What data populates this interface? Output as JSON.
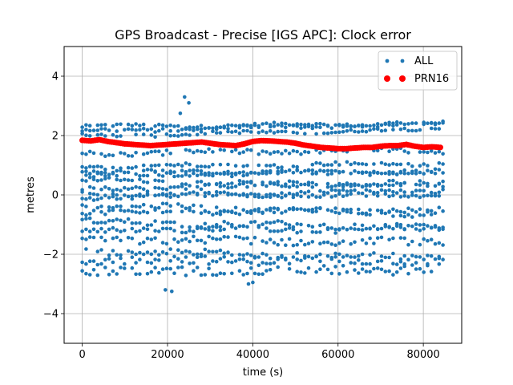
{
  "chart_data": {
    "type": "scatter",
    "title": "GPS Broadcast - Precise [IGS APC]: Clock error",
    "xlabel": "time (s)",
    "ylabel": "metres",
    "xlim": [
      -4250,
      89000
    ],
    "ylim": [
      -5,
      5
    ],
    "x_ticks": [
      0,
      20000,
      40000,
      60000,
      80000
    ],
    "y_ticks": [
      -4,
      -2,
      0,
      2,
      4
    ],
    "grid": true,
    "legend_position": "upper right",
    "series": [
      {
        "name": "ALL",
        "color": "#1f77b4",
        "marker": "point",
        "x_range": [
          0,
          84600
        ],
        "x_step": 900,
        "tracks": [
          {
            "y0": 2.3,
            "slope": 0.1,
            "amp": 0.05
          },
          {
            "y0": 2.15,
            "slope": 0.25,
            "amp": 0.06
          },
          {
            "y0": 2.0,
            "slope": 0.2,
            "amp": 0.05
          },
          {
            "y0": 1.4,
            "slope": 0.1,
            "amp": 0.08
          },
          {
            "y0": 0.95,
            "slope": 0.1,
            "amp": 0.06
          },
          {
            "y0": 0.8,
            "slope": -0.05,
            "amp": 0.05
          },
          {
            "y0": 0.65,
            "slope": 0.15,
            "amp": 0.07
          },
          {
            "y0": 0.5,
            "slope": -0.2,
            "amp": 0.06
          },
          {
            "y0": 0.2,
            "slope": 0.2,
            "amp": 0.08
          },
          {
            "y0": 0.05,
            "slope": -0.1,
            "amp": 0.05
          },
          {
            "y0": -0.1,
            "slope": 0.25,
            "amp": 0.07
          },
          {
            "y0": -0.35,
            "slope": -0.3,
            "amp": 0.09
          },
          {
            "y0": -0.6,
            "slope": 0.1,
            "amp": 0.08
          },
          {
            "y0": -0.9,
            "slope": -0.2,
            "amp": 0.1
          },
          {
            "y0": -1.2,
            "slope": 0.05,
            "amp": 0.1
          },
          {
            "y0": -1.5,
            "slope": -0.1,
            "amp": 0.12
          },
          {
            "y0": -1.9,
            "slope": -0.2,
            "amp": 0.1
          },
          {
            "y0": -2.2,
            "slope": 0.0,
            "amp": 0.14
          },
          {
            "y0": -2.6,
            "slope": 0.1,
            "amp": 0.15
          }
        ],
        "extra_points": [
          {
            "x": 23000,
            "y": 2.75
          },
          {
            "x": 24000,
            "y": 3.3
          },
          {
            "x": 25000,
            "y": 3.1
          },
          {
            "x": 39000,
            "y": -3.0
          },
          {
            "x": 40000,
            "y": -2.95
          },
          {
            "x": 19500,
            "y": -3.2
          },
          {
            "x": 21000,
            "y": -3.25
          }
        ]
      },
      {
        "name": "PRN16",
        "color": "#ff0000",
        "marker": "circle",
        "points": [
          [
            0,
            1.84
          ],
          [
            2000,
            1.82
          ],
          [
            4000,
            1.86
          ],
          [
            6000,
            1.8
          ],
          [
            8000,
            1.76
          ],
          [
            10000,
            1.72
          ],
          [
            12000,
            1.7
          ],
          [
            14000,
            1.68
          ],
          [
            16000,
            1.66
          ],
          [
            18000,
            1.68
          ],
          [
            20000,
            1.7
          ],
          [
            22000,
            1.72
          ],
          [
            24000,
            1.74
          ],
          [
            26000,
            1.76
          ],
          [
            28000,
            1.78
          ],
          [
            30000,
            1.74
          ],
          [
            32000,
            1.7
          ],
          [
            34000,
            1.68
          ],
          [
            36000,
            1.66
          ],
          [
            38000,
            1.72
          ],
          [
            40000,
            1.8
          ],
          [
            42000,
            1.83
          ],
          [
            44000,
            1.82
          ],
          [
            46000,
            1.8
          ],
          [
            48000,
            1.78
          ],
          [
            50000,
            1.74
          ],
          [
            52000,
            1.68
          ],
          [
            54000,
            1.64
          ],
          [
            56000,
            1.6
          ],
          [
            58000,
            1.58
          ],
          [
            60000,
            1.56
          ],
          [
            62000,
            1.56
          ],
          [
            64000,
            1.58
          ],
          [
            66000,
            1.6
          ],
          [
            68000,
            1.6
          ],
          [
            70000,
            1.64
          ],
          [
            72000,
            1.66
          ],
          [
            74000,
            1.66
          ],
          [
            76000,
            1.7
          ],
          [
            78000,
            1.64
          ],
          [
            80000,
            1.6
          ],
          [
            82000,
            1.62
          ],
          [
            84000,
            1.6
          ]
        ]
      }
    ]
  }
}
